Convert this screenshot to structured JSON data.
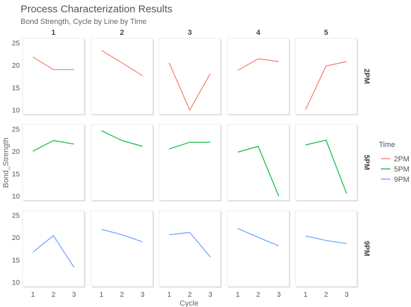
{
  "chart_data": {
    "type": "line",
    "title": "Process Characterization Results",
    "subtitle": "Bond Strength, Cycle by Line by Time",
    "xlabel": "Cycle",
    "ylabel": "Bond_Strength",
    "x": [
      1,
      2,
      3
    ],
    "x_ticks": [
      "1",
      "2",
      "3"
    ],
    "y_ticks": [
      "10",
      "15",
      "20",
      "25"
    ],
    "ylim": [
      9,
      26
    ],
    "xlim": [
      0.5,
      3.5
    ],
    "columns": [
      "1",
      "2",
      "3",
      "4",
      "5"
    ],
    "rows": [
      "2PM",
      "5PM",
      "9PM"
    ],
    "legend": {
      "title": "Time",
      "position": "right",
      "entries": [
        {
          "label": "2PM",
          "color": "#F8766D"
        },
        {
          "label": "5PM",
          "color": "#00BA38"
        },
        {
          "label": "9PM",
          "color": "#619CFF"
        }
      ]
    },
    "grid": false,
    "panels": [
      {
        "row": "2PM",
        "col": "1",
        "values": [
          21.8,
          19.0,
          19.0
        ]
      },
      {
        "row": "2PM",
        "col": "2",
        "values": [
          23.3,
          20.5,
          17.6
        ]
      },
      {
        "row": "2PM",
        "col": "3",
        "values": [
          20.5,
          9.9,
          18.1
        ]
      },
      {
        "row": "2PM",
        "col": "4",
        "values": [
          18.8,
          21.4,
          20.8
        ]
      },
      {
        "row": "2PM",
        "col": "5",
        "values": [
          10.0,
          19.8,
          20.8
        ]
      },
      {
        "row": "5PM",
        "col": "1",
        "values": [
          20.0,
          22.4,
          21.6
        ]
      },
      {
        "row": "5PM",
        "col": "2",
        "values": [
          24.6,
          22.4,
          21.1
        ]
      },
      {
        "row": "5PM",
        "col": "3",
        "values": [
          20.5,
          22.0,
          22.0
        ]
      },
      {
        "row": "5PM",
        "col": "4",
        "values": [
          19.8,
          21.1,
          9.9
        ]
      },
      {
        "row": "5PM",
        "col": "5",
        "values": [
          21.4,
          22.5,
          10.5
        ]
      },
      {
        "row": "9PM",
        "col": "1",
        "values": [
          16.7,
          20.4,
          13.3
        ]
      },
      {
        "row": "9PM",
        "col": "2",
        "values": [
          21.8,
          20.6,
          19.0
        ]
      },
      {
        "row": "9PM",
        "col": "3",
        "values": [
          20.6,
          21.1,
          15.6
        ]
      },
      {
        "row": "9PM",
        "col": "4",
        "values": [
          22.0,
          20.0,
          18.1
        ]
      },
      {
        "row": "9PM",
        "col": "5",
        "values": [
          20.3,
          19.3,
          18.6
        ]
      }
    ]
  }
}
